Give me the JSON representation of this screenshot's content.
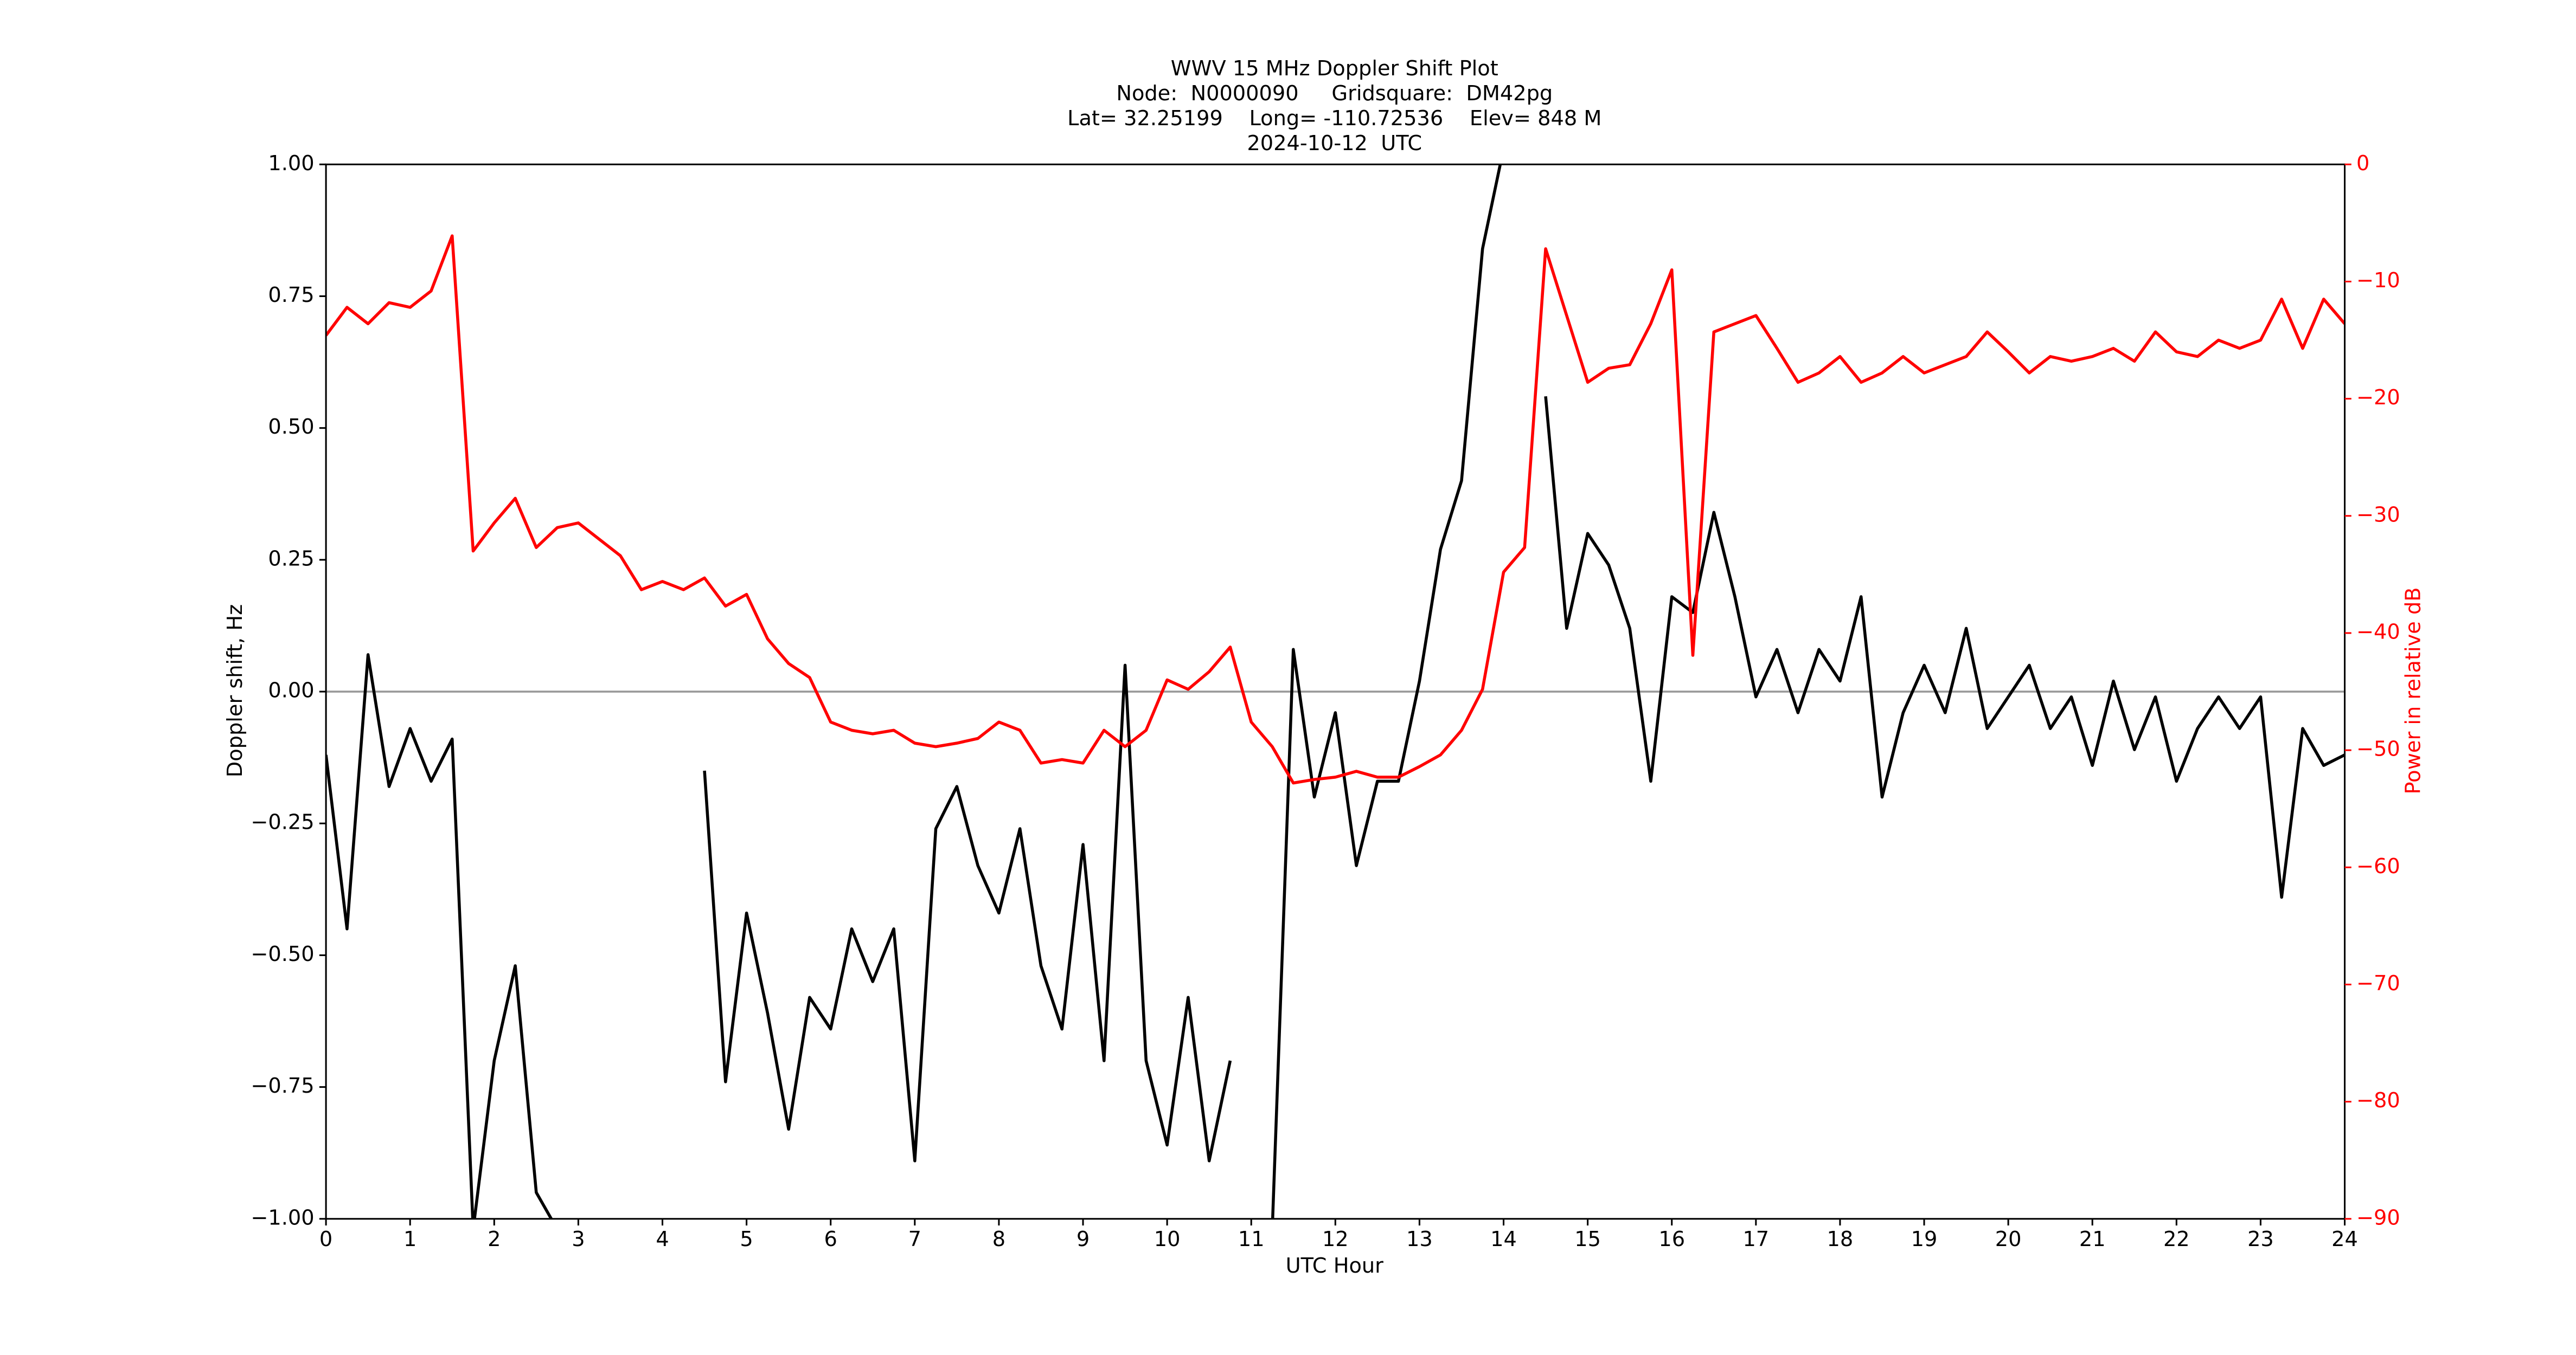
{
  "chart_data": {
    "type": "line",
    "title": [
      "WWV 15 MHz Doppler Shift Plot",
      "Node:  N0000090     Gridsquare:  DM42pg",
      "Lat= 32.25199    Long= -110.72536    Elev= 848 M",
      "2024-10-12  UTC"
    ],
    "x_label": "UTC Hour",
    "y_label": "Doppler shift, Hz",
    "y2_label": "Power in relative dB",
    "x": [
      0,
      0.25,
      0.5,
      0.75,
      1,
      1.25,
      1.5,
      1.75,
      2,
      2.25,
      2.5,
      2.75,
      3,
      3.25,
      3.5,
      3.75,
      4,
      4.25,
      4.5,
      4.75,
      5,
      5.25,
      5.5,
      5.75,
      6,
      6.25,
      6.5,
      6.75,
      7,
      7.25,
      7.5,
      7.75,
      8,
      8.25,
      8.5,
      8.75,
      9,
      9.25,
      9.5,
      9.75,
      10,
      10.25,
      10.5,
      10.75,
      11,
      11.25,
      11.5,
      11.75,
      12,
      12.25,
      12.5,
      12.75,
      13,
      13.25,
      13.5,
      13.75,
      14,
      14.25,
      14.5,
      14.75,
      15,
      15.25,
      15.5,
      15.75,
      16,
      16.25,
      16.5,
      16.75,
      17,
      17.25,
      17.5,
      17.75,
      18,
      18.25,
      18.5,
      18.75,
      19,
      19.25,
      19.5,
      19.75,
      20,
      20.25,
      20.5,
      20.75,
      21,
      21.25,
      21.5,
      21.75,
      22,
      22.25,
      22.5,
      22.75,
      23,
      23.25,
      23.5,
      23.75,
      24
    ],
    "series": [
      {
        "color": "#000000",
        "values": [
          -0.12,
          -0.45,
          0.07,
          -0.18,
          -0.07,
          -0.17,
          -0.09,
          -1.02,
          -0.7,
          -0.52,
          -0.95,
          -1.02,
          null,
          null,
          null,
          null,
          null,
          null,
          -0.15,
          -0.74,
          -0.42,
          -0.61,
          -0.83,
          -0.58,
          -0.64,
          -0.45,
          -0.55,
          -0.45,
          -0.89,
          -0.26,
          -0.18,
          -0.33,
          -0.42,
          -0.26,
          -0.52,
          -0.64,
          -0.29,
          -0.7,
          0.05,
          -0.7,
          -0.86,
          -0.58,
          -0.89,
          -0.7,
          null,
          -1.02,
          0.08,
          -0.2,
          -0.04,
          -0.33,
          -0.17,
          -0.17,
          0.02,
          0.27,
          0.4,
          0.84,
          1.03,
          null,
          0.56,
          0.12,
          0.3,
          0.24,
          0.12,
          -0.17,
          0.18,
          0.15,
          0.34,
          0.18,
          -0.01,
          0.08,
          -0.04,
          0.08,
          0.02,
          0.18,
          -0.2,
          -0.04,
          0.05,
          -0.04,
          0.12,
          -0.07,
          -0.01,
          0.05,
          -0.07,
          -0.01,
          -0.14,
          0.02,
          -0.11,
          -0.01,
          -0.17,
          -0.07,
          -0.01,
          -0.07,
          -0.01,
          -0.39,
          -0.07,
          -0.14,
          -0.12
        ]
      },
      {
        "color": "#ff0000",
        "axis": "y2",
        "values": [
          -14.6,
          -12.2,
          -13.6,
          -11.8,
          -12.2,
          -10.8,
          -6.1,
          -33,
          -30.6,
          -28.5,
          -32.7,
          -31,
          -30.6,
          -32,
          -33.4,
          -36.3,
          -35.6,
          -36.3,
          -35.3,
          -37.7,
          -36.7,
          -40.5,
          -42.6,
          -43.8,
          -47.6,
          -48.3,
          -48.6,
          -48.3,
          -49.4,
          -49.7,
          -49.4,
          -49,
          -47.6,
          -48.3,
          -51.1,
          -50.8,
          -51.1,
          -48.3,
          -49.7,
          -48.3,
          -44,
          -44.8,
          -43.3,
          -41.2,
          -47.6,
          -49.7,
          -52.8,
          -52.5,
          -52.3,
          -51.8,
          -52.3,
          -52.3,
          -51.4,
          -50.4,
          -48.3,
          -44.8,
          -34.8,
          -32.7,
          -7.2,
          -12.9,
          -18.6,
          -17.4,
          -17.1,
          -13.6,
          -9,
          -41.9,
          -14.3,
          -13.6,
          -12.9,
          -15.7,
          -18.6,
          -17.8,
          -16.4,
          -18.6,
          -17.8,
          -16.4,
          -17.8,
          -17.1,
          -16.4,
          -14.3,
          -16,
          -17.8,
          -16.4,
          -16.8,
          -16.4,
          -15.7,
          -16.8,
          -14.3,
          -16,
          -16.4,
          -15,
          -15.7,
          -15,
          -11.5,
          -15.7,
          -11.5,
          -13.6
        ]
      }
    ],
    "xlim": [
      0,
      24
    ],
    "xticks": [
      0,
      1,
      2,
      3,
      4,
      5,
      6,
      7,
      8,
      9,
      10,
      11,
      12,
      13,
      14,
      15,
      16,
      17,
      18,
      19,
      20,
      21,
      22,
      23,
      24
    ],
    "ylim": [
      -1,
      1
    ],
    "yticks": [
      {
        "value": -1,
        "label": "−1.00"
      },
      {
        "value": -0.75,
        "label": "−0.75"
      },
      {
        "value": -0.5,
        "label": "−0.50"
      },
      {
        "value": -0.25,
        "label": "−0.25"
      },
      {
        "value": 0,
        "label": "0.00"
      },
      {
        "value": 0.25,
        "label": "0.25"
      },
      {
        "value": 0.5,
        "label": "0.50"
      },
      {
        "value": 0.75,
        "label": "0.75"
      },
      {
        "value": 1,
        "label": "1.00"
      }
    ],
    "y2lim": [
      -90,
      0
    ],
    "y2ticks": [
      {
        "value": -90,
        "label": "−90"
      },
      {
        "value": -80,
        "label": "−80"
      },
      {
        "value": -70,
        "label": "−70"
      },
      {
        "value": -60,
        "label": "−60"
      },
      {
        "value": -50,
        "label": "−50"
      },
      {
        "value": -40,
        "label": "−40"
      },
      {
        "value": -30,
        "label": "−30"
      },
      {
        "value": -20,
        "label": "−20"
      },
      {
        "value": -10,
        "label": "−10"
      },
      0
    ],
    "reference_line": 0,
    "grid": false
  }
}
